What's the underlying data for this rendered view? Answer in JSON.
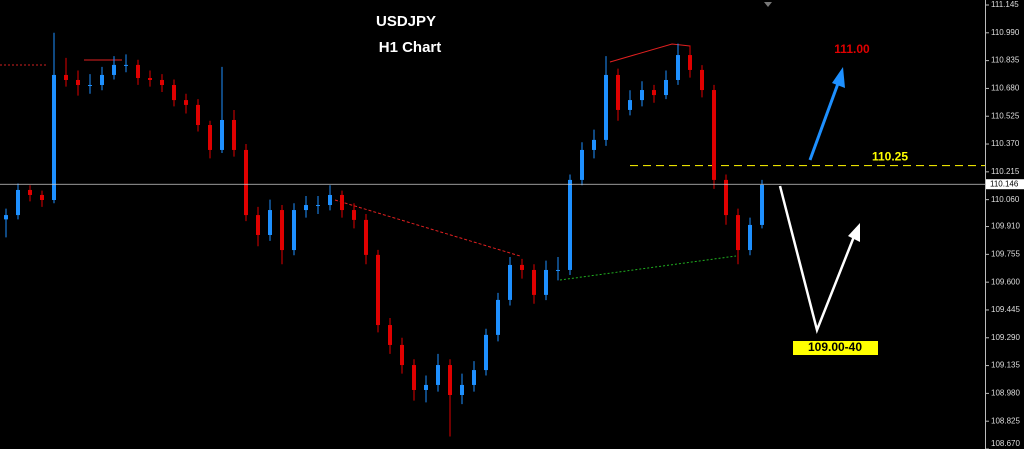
{
  "chart_data": {
    "type": "candlestick",
    "title": "USDJPY",
    "subtitle": "H1 Chart",
    "up_color": "#1e90ff",
    "down_color": "#e00000",
    "ylim": [
      108.67,
      111.145
    ],
    "yticks": [
      111.145,
      {
        "value": 110.99,
        "label": "110.990"
      },
      110.835,
      {
        "value": 110.68,
        "label": "110.680"
      },
      110.525,
      {
        "value": 110.37,
        "label": "110.370"
      },
      110.215,
      {
        "value": 110.06,
        "label": "110.060"
      },
      {
        "value": 109.91,
        "label": "109.910"
      },
      109.755,
      {
        "value": 109.6,
        "label": "109.600"
      },
      109.445,
      {
        "value": 109.29,
        "label": "109.290"
      },
      109.135,
      {
        "value": 108.98,
        "label": "108.980"
      },
      108.825,
      {
        "value": 108.67,
        "label": "108.670"
      }
    ],
    "current_price": 110.146,
    "level": 110.25,
    "annotations": [
      "111.00",
      "109.00-40"
    ],
    "open": [
      109.95,
      109.974,
      110.114,
      110.086,
      110.058,
      110.755,
      110.727,
      110.699,
      110.699,
      110.755,
      110.811,
      110.811,
      110.738,
      110.727,
      110.699,
      110.615,
      110.588,
      110.476,
      110.337,
      110.504,
      110.337,
      109.974,
      109.863,
      110.002,
      109.779,
      110.002,
      110.03,
      110.03,
      110.086,
      110.002,
      109.947,
      109.752,
      109.361,
      109.25,
      109.138,
      108.999,
      109.027,
      109.138,
      108.971,
      109.027,
      109.11,
      109.306,
      109.501,
      109.696,
      109.668,
      109.529,
      109.668,
      109.668,
      110.17,
      110.337,
      110.393,
      110.755,
      110.56,
      110.615,
      110.671,
      110.643,
      110.727,
      110.866,
      110.783,
      110.671,
      110.17,
      109.974,
      109.779,
      109.919
    ],
    "high": [
      110.01,
      110.15,
      110.14,
      110.11,
      110.99,
      110.85,
      110.78,
      110.76,
      110.8,
      110.86,
      110.87,
      110.84,
      110.78,
      110.76,
      110.73,
      110.65,
      110.62,
      110.5,
      110.8,
      110.56,
      110.37,
      110.02,
      110.06,
      110.03,
      110.04,
      110.08,
      110.08,
      110.14,
      110.11,
      110.04,
      109.98,
      109.78,
      109.4,
      109.29,
      109.17,
      109.08,
      109.2,
      109.17,
      109.09,
      109.16,
      109.34,
      109.54,
      109.74,
      109.73,
      109.7,
      109.72,
      109.74,
      110.2,
      110.38,
      110.45,
      110.86,
      110.79,
      110.67,
      110.72,
      110.7,
      110.78,
      110.93,
      110.92,
      110.81,
      110.7,
      110.2,
      110.01,
      109.96,
      110.17
    ],
    "low": [
      109.85,
      109.95,
      110.05,
      110.02,
      110.04,
      110.69,
      110.64,
      110.65,
      110.67,
      110.73,
      110.77,
      110.7,
      110.69,
      110.66,
      110.58,
      110.54,
      110.44,
      110.29,
      110.32,
      110.3,
      109.94,
      109.8,
      109.83,
      109.7,
      109.75,
      109.96,
      109.98,
      110.0,
      109.96,
      109.9,
      109.7,
      109.32,
      109.2,
      109.09,
      108.94,
      108.93,
      108.99,
      108.74,
      108.92,
      108.99,
      109.08,
      109.27,
      109.47,
      109.62,
      109.48,
      109.5,
      109.61,
      109.64,
      110.14,
      110.29,
      110.36,
      110.5,
      110.53,
      110.58,
      110.6,
      110.62,
      110.7,
      110.74,
      110.63,
      110.12,
      109.92,
      109.7,
      109.75,
      109.9
    ],
    "close": [
      109.974,
      110.114,
      110.086,
      110.058,
      110.755,
      110.727,
      110.699,
      110.699,
      110.755,
      110.811,
      110.811,
      110.738,
      110.727,
      110.699,
      110.615,
      110.588,
      110.476,
      110.337,
      110.504,
      110.337,
      109.974,
      109.863,
      110.002,
      109.779,
      110.002,
      110.03,
      110.03,
      110.086,
      110.002,
      109.947,
      109.752,
      109.361,
      109.25,
      109.138,
      108.999,
      109.027,
      109.138,
      108.971,
      109.027,
      109.11,
      109.306,
      109.501,
      109.696,
      109.668,
      109.529,
      109.668,
      109.668,
      110.17,
      110.337,
      110.393,
      110.755,
      110.56,
      110.615,
      110.671,
      110.643,
      110.727,
      110.866,
      110.783,
      110.671,
      110.17,
      109.974,
      109.779,
      109.919,
      110.142
    ]
  }
}
